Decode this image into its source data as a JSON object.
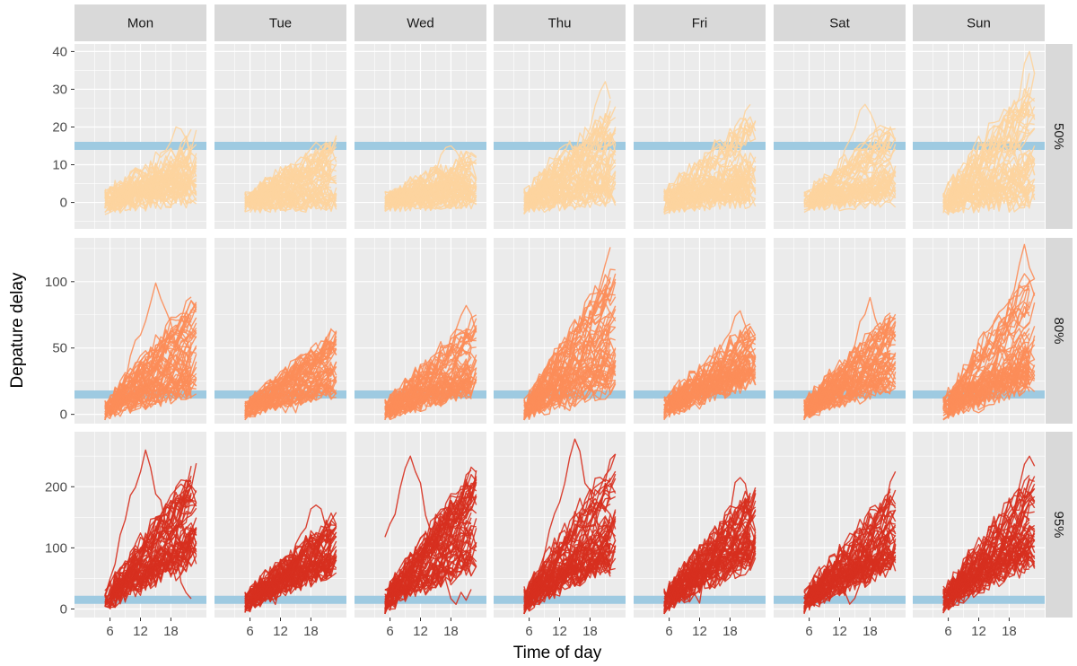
{
  "chart_data": {
    "type": "line",
    "title": "",
    "xlabel": "Time of day",
    "ylabel": "Depature delay",
    "columns": [
      "Mon",
      "Tue",
      "Wed",
      "Thu",
      "Fri",
      "Sat",
      "Sun"
    ],
    "rows": [
      "50%",
      "80%",
      "95%"
    ],
    "x_ticks": [
      "6",
      "12",
      "18"
    ],
    "xlim": [
      -1,
      25
    ],
    "reference_line": {
      "y": 15,
      "color": "#9ecae1"
    },
    "row_colors": {
      "50%": "#fdd49e",
      "80%": "#fc8d59",
      "95%": "#d7301f"
    },
    "row_axes": [
      {
        "row": "50%",
        "ylim": [
          -7,
          42
        ],
        "ticks": [
          "0",
          "10",
          "20",
          "30",
          "40"
        ]
      },
      {
        "row": "80%",
        "ylim": [
          -7,
          133
        ],
        "ticks": [
          "0",
          "50",
          "100"
        ]
      },
      {
        "row": "95%",
        "ylim": [
          -14,
          290
        ],
        "ticks": [
          "0",
          "100",
          "200"
        ]
      }
    ],
    "hours": [
      5,
      6,
      7,
      8,
      9,
      10,
      11,
      12,
      13,
      14,
      15,
      16,
      17,
      18,
      19,
      20,
      21,
      22,
      23
    ],
    "panels": [
      {
        "row": "50%",
        "col": "Mon",
        "lines": 60,
        "base": 2,
        "spread": 5,
        "peak": 20,
        "peak_hour": 19
      },
      {
        "row": "50%",
        "col": "Tue",
        "lines": 60,
        "base": 0,
        "spread": 4,
        "peak": 20,
        "peak_hour": 23
      },
      {
        "row": "50%",
        "col": "Wed",
        "lines": 60,
        "base": 1,
        "spread": 4,
        "peak": 15,
        "peak_hour": 18
      },
      {
        "row": "50%",
        "col": "Thu",
        "lines": 60,
        "base": 2,
        "spread": 5,
        "peak": 32,
        "peak_hour": 21
      },
      {
        "row": "50%",
        "col": "Fri",
        "lines": 60,
        "base": 2,
        "spread": 5,
        "peak": 26,
        "peak_hour": 22
      },
      {
        "row": "50%",
        "col": "Sat",
        "lines": 60,
        "base": 1,
        "spread": 4,
        "peak": 26,
        "peak_hour": 17
      },
      {
        "row": "50%",
        "col": "Sun",
        "lines": 60,
        "base": 1,
        "spread": 5,
        "peak": 40,
        "peak_hour": 22
      },
      {
        "row": "80%",
        "col": "Mon",
        "lines": 60,
        "base": 20,
        "spread": 12,
        "peak": 99,
        "peak_hour": 15
      },
      {
        "row": "80%",
        "col": "Tue",
        "lines": 60,
        "base": 18,
        "spread": 10,
        "peak": 68,
        "peak_hour": 23
      },
      {
        "row": "80%",
        "col": "Wed",
        "lines": 60,
        "base": 20,
        "spread": 12,
        "peak": 82,
        "peak_hour": 21
      },
      {
        "row": "80%",
        "col": "Thu",
        "lines": 60,
        "base": 22,
        "spread": 13,
        "peak": 126,
        "peak_hour": 22
      },
      {
        "row": "80%",
        "col": "Fri",
        "lines": 60,
        "base": 28,
        "spread": 13,
        "peak": 78,
        "peak_hour": 20
      },
      {
        "row": "80%",
        "col": "Sat",
        "lines": 60,
        "base": 22,
        "spread": 12,
        "peak": 88,
        "peak_hour": 18
      },
      {
        "row": "80%",
        "col": "Sun",
        "lines": 60,
        "base": 25,
        "spread": 14,
        "peak": 128,
        "peak_hour": 21
      },
      {
        "row": "95%",
        "col": "Mon",
        "lines": 60,
        "base": 80,
        "spread": 30,
        "peak": 260,
        "peak_hour": 13
      },
      {
        "row": "95%",
        "col": "Tue",
        "lines": 60,
        "base": 70,
        "spread": 28,
        "peak": 170,
        "peak_hour": 19
      },
      {
        "row": "95%",
        "col": "Wed",
        "lines": 60,
        "base": 75,
        "spread": 30,
        "peak": 250,
        "peak_hour": 10
      },
      {
        "row": "95%",
        "col": "Thu",
        "lines": 60,
        "base": 80,
        "spread": 30,
        "peak": 278,
        "peak_hour": 15
      },
      {
        "row": "95%",
        "col": "Fri",
        "lines": 60,
        "base": 85,
        "spread": 32,
        "peak": 215,
        "peak_hour": 20
      },
      {
        "row": "95%",
        "col": "Sat",
        "lines": 60,
        "base": 75,
        "spread": 30,
        "peak": 225,
        "peak_hour": 23
      },
      {
        "row": "95%",
        "col": "Sun",
        "lines": 60,
        "base": 80,
        "spread": 30,
        "peak": 250,
        "peak_hour": 22
      }
    ],
    "grid": true,
    "legend": "none"
  }
}
